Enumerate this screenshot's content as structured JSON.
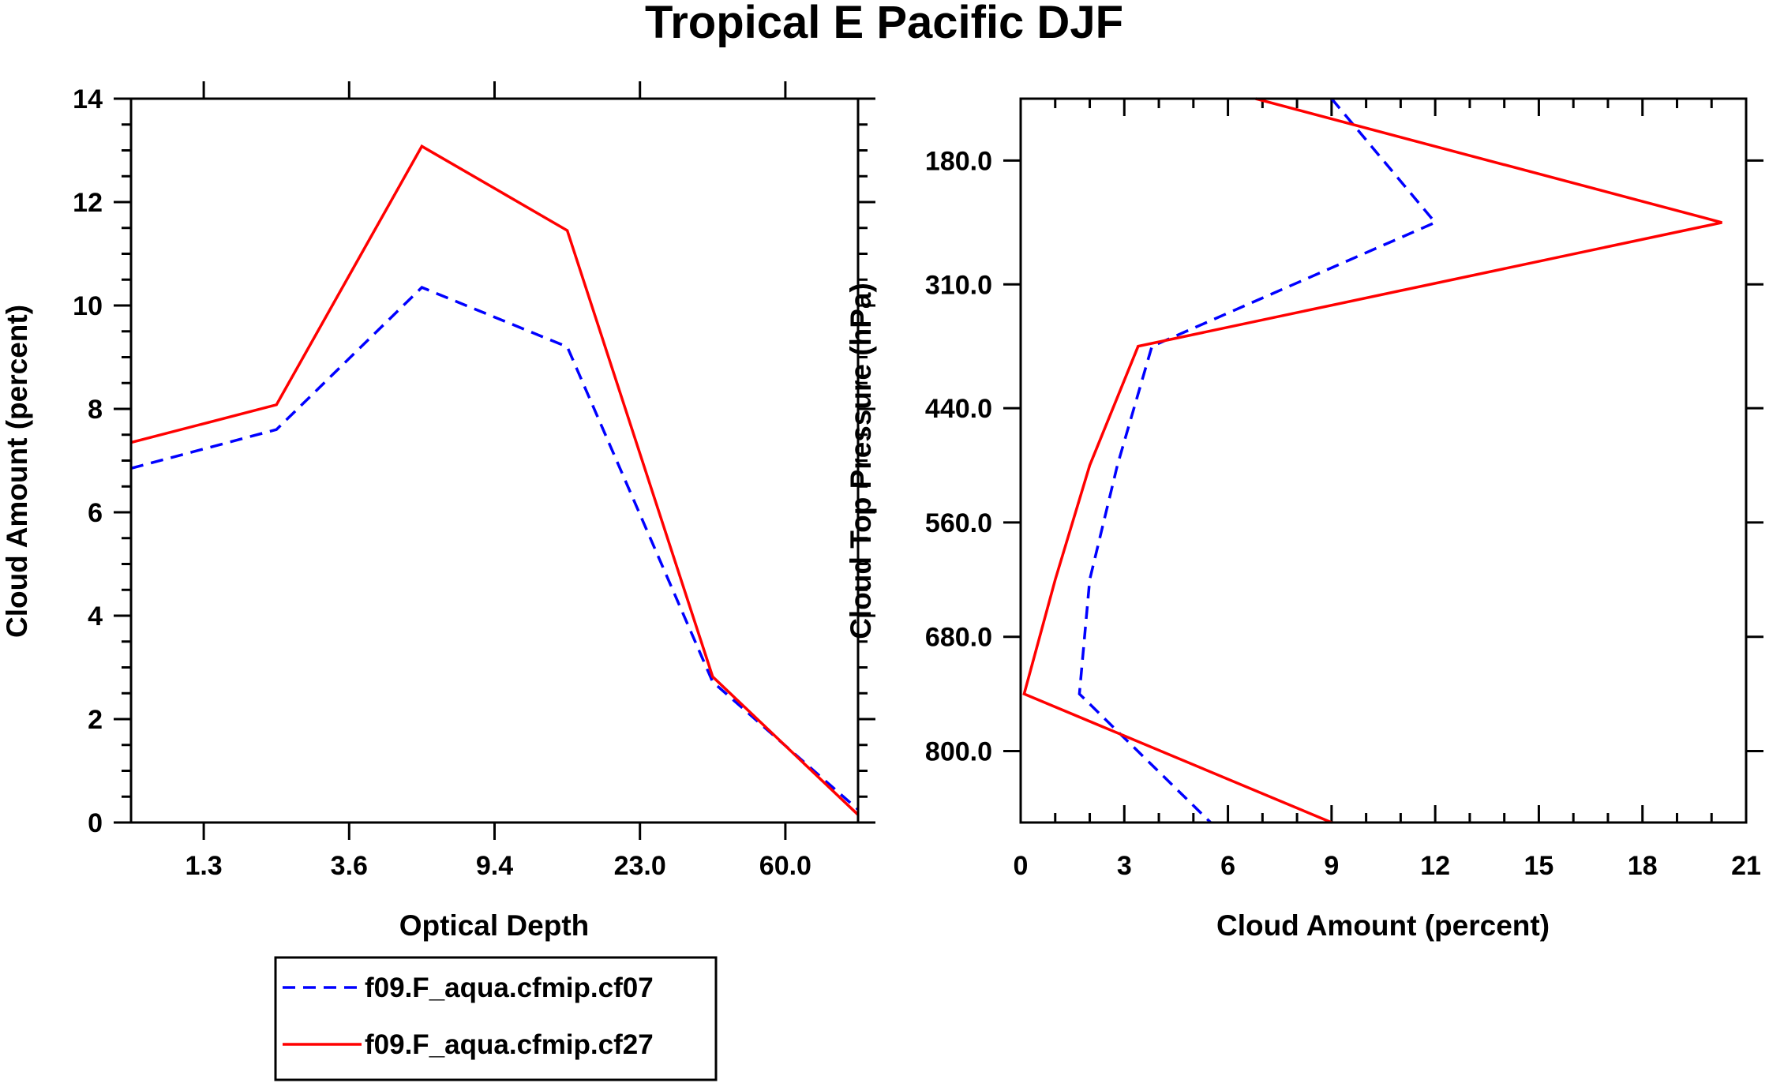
{
  "title": "Tropical E Pacific DJF",
  "colors": {
    "cf07": "#0000ff",
    "cf27": "#ff0000",
    "axis": "#000000"
  },
  "chart_data": [
    {
      "type": "line",
      "name": "optical-depth-panel",
      "xlabel": "Optical Depth",
      "ylabel": "Cloud Amount (percent)",
      "xlim": [
        0,
        10
      ],
      "ylim": [
        0,
        14
      ],
      "xticks": [
        1,
        3,
        5,
        7,
        9
      ],
      "xtick_labels": [
        "1.3",
        "3.6",
        "9.4",
        "23.0",
        "60.0"
      ],
      "yticks": [
        0,
        2,
        4,
        6,
        8,
        10,
        12,
        14
      ],
      "ytick_labels": [
        "0",
        "2",
        "4",
        "6",
        "8",
        "10",
        "12",
        "14"
      ],
      "series": [
        {
          "name": "f09.F_aqua.cfmip.cf07",
          "style": "dashed",
          "color_key": "cf07",
          "x": [
            0,
            2,
            4,
            6,
            8,
            10
          ],
          "values": [
            6.85,
            7.6,
            10.35,
            9.2,
            2.72,
            0.25
          ]
        },
        {
          "name": "f09.F_aqua.cfmip.cf27",
          "style": "solid",
          "color_key": "cf27",
          "x": [
            0,
            2,
            4,
            6,
            8,
            10
          ],
          "values": [
            7.35,
            8.08,
            13.08,
            11.45,
            2.82,
            0.15
          ]
        }
      ]
    },
    {
      "type": "line",
      "name": "pressure-panel",
      "orientation": "horizontal",
      "xlabel": "Cloud Amount (percent)",
      "ylabel": "Cloud Top Pressure (hPa)",
      "xlim": [
        0,
        21
      ],
      "ylim": [
        875,
        115
      ],
      "xticks": [
        0,
        3,
        6,
        9,
        12,
        15,
        18,
        21
      ],
      "xtick_labels": [
        "0",
        "3",
        "6",
        "9",
        "12",
        "15",
        "18",
        "21"
      ],
      "yticks": [
        180,
        310,
        440,
        560,
        680,
        800
      ],
      "ytick_labels": [
        "180.0",
        "310.0",
        "440.0",
        "560.0",
        "680.0",
        "800.0"
      ],
      "series": [
        {
          "name": "f09.F_aqua.cfmip.cf07",
          "style": "dashed",
          "color_key": "cf07",
          "pressure": [
            115,
            245,
            375,
            500,
            620,
            740,
            875
          ],
          "values": [
            9.0,
            12.0,
            3.8,
            2.8,
            2.0,
            1.7,
            5.5
          ]
        },
        {
          "name": "f09.F_aqua.cfmip.cf27",
          "style": "solid",
          "color_key": "cf27",
          "pressure": [
            115,
            245,
            375,
            500,
            620,
            740,
            875
          ],
          "values": [
            6.8,
            20.3,
            3.4,
            2.0,
            1.0,
            0.1,
            9.0
          ]
        }
      ]
    }
  ],
  "legend": {
    "entries": [
      {
        "label": "f09.F_aqua.cfmip.cf07",
        "style": "dashed",
        "color_key": "cf07"
      },
      {
        "label": "f09.F_aqua.cfmip.cf27",
        "style": "solid",
        "color_key": "cf27"
      }
    ]
  }
}
